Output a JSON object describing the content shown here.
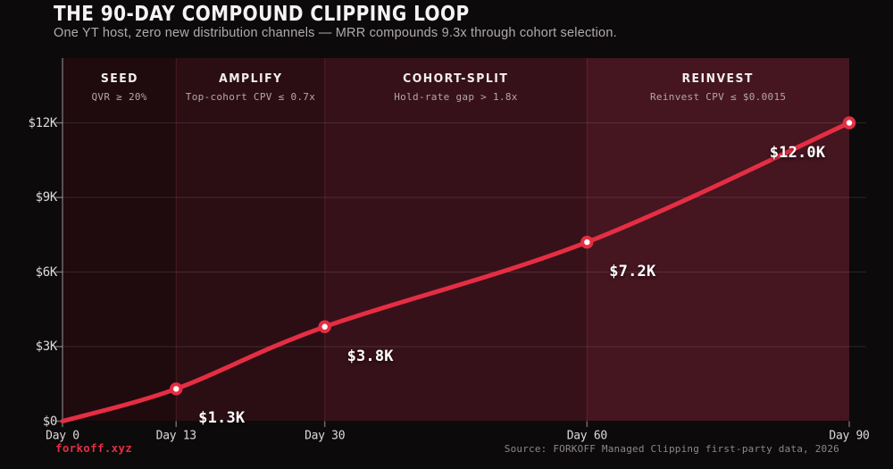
{
  "header": {
    "title": "THE 90-DAY COMPOUND CLIPPING LOOP",
    "subtitle": "One YT host, zero new distribution channels — MRR compounds 9.3x through cohort selection."
  },
  "footer": {
    "brand": "forkoff.xyz",
    "source": "Source: FORKOFF Managed Clipping first-party data, 2026"
  },
  "colors": {
    "background": "#0c0a0b",
    "accent": "#e52e43",
    "marker_fill": "#ffffff",
    "title_text": "#f6f3f3",
    "muted_text": "#b2aaac",
    "axis_text": "#ded9d9",
    "source_text": "#8f8789",
    "band_fills": [
      "#1f0a0e",
      "#2b0e14",
      "#371119",
      "#451520"
    ],
    "gridline": "rgba(216,208,210,0.14)",
    "axis_line": "rgba(205,198,200,0.5)",
    "phase_divider": "rgba(236,120,132,0.16)"
  },
  "chart_data": {
    "type": "line",
    "title": "THE 90-DAY COMPOUND CLIPPING LOOP",
    "x_days": [
      0,
      13,
      30,
      60,
      90
    ],
    "y_mrr_usd": [
      0,
      1300,
      3800,
      7200,
      12000
    ],
    "point_labels": [
      "",
      "$1.3K",
      "$3.8K",
      "$7.2K",
      "$12.0K"
    ],
    "x_tick_days": [
      0,
      13,
      30,
      60,
      90
    ],
    "x_tick_labels": [
      "Day 0",
      "Day 13",
      "Day 30",
      "Day 60",
      "Day 90"
    ],
    "y_tick_values": [
      0,
      3000,
      6000,
      9000,
      12000
    ],
    "y_tick_labels": [
      "$0",
      "$3K",
      "$6K",
      "$9K",
      "$12K"
    ],
    "xlim": [
      0,
      90
    ],
    "ylim": [
      0,
      12000
    ],
    "grid": "horizontal-only",
    "legend": "none",
    "phases": [
      {
        "label": "SEED",
        "criteria": "QVR ≥ 20%",
        "day_start": 0,
        "day_end": 13
      },
      {
        "label": "AMPLIFY",
        "criteria": "Top-cohort CPV ≤ 0.7x",
        "day_start": 13,
        "day_end": 30
      },
      {
        "label": "COHORT-SPLIT",
        "criteria": "Hold-rate gap > 1.8x",
        "day_start": 30,
        "day_end": 60
      },
      {
        "label": "REINVEST",
        "criteria": "Reinvest CPV ≤ $0.0015",
        "day_start": 60,
        "day_end": 90
      }
    ]
  }
}
